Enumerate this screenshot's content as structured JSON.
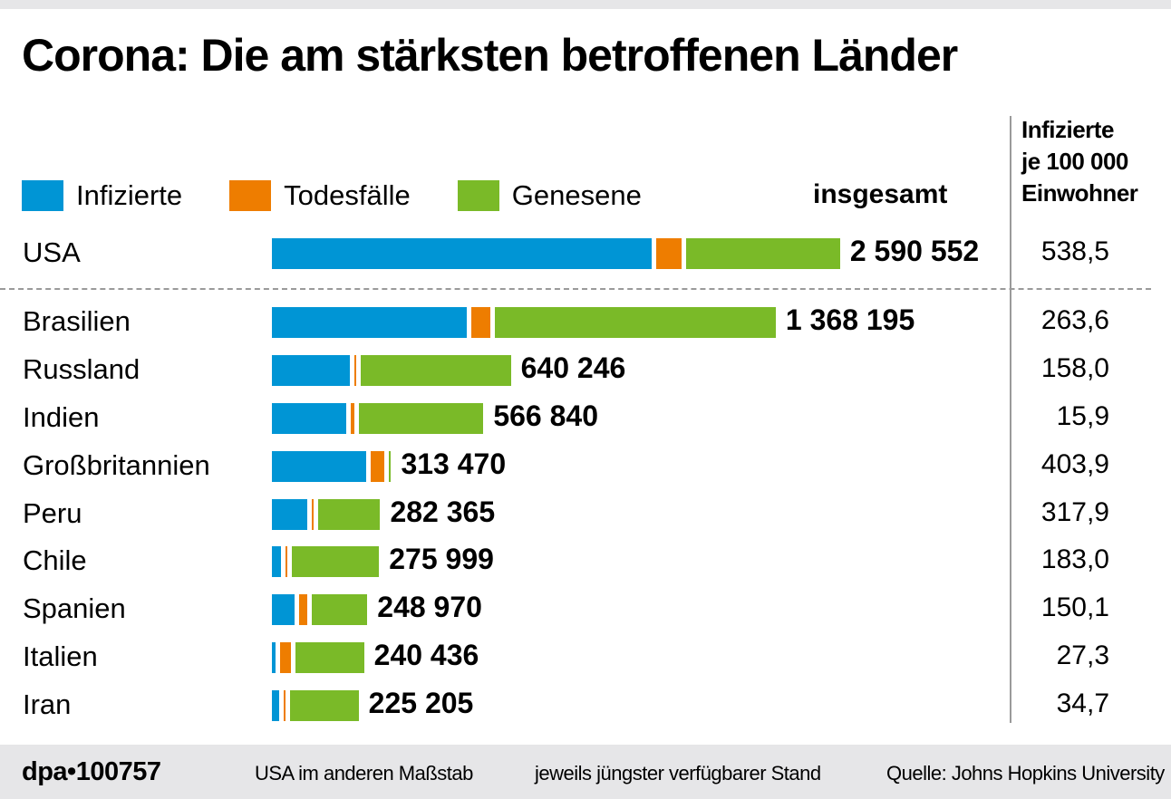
{
  "title": "Corona: Die am stärksten betroffenen Länder",
  "legend": [
    {
      "label": "Infizierte",
      "color": "#0095d5"
    },
    {
      "label": "Todesfälle",
      "color": "#ee7d00"
    },
    {
      "label": "Genesene",
      "color": "#7aba28"
    }
  ],
  "headers": {
    "total": "insgesamt",
    "rate": [
      "Infizierte",
      "je 100 000",
      "Einwohner"
    ]
  },
  "footer": {
    "logo": "dpa•100757",
    "note1": "USA im anderen Maßstab",
    "note2": "jeweils jüngster verfügbarer Stand",
    "source": "Quelle: Johns Hopkins University"
  },
  "chart_data": {
    "type": "bar",
    "orientation": "horizontal",
    "stacked": true,
    "title": "Corona: Die am stärksten betroffenen Länder",
    "series_names": [
      "Infizierte",
      "Todesfälle",
      "Genesene"
    ],
    "note": "Segment values estimated from bar lengths; totals are labeled. USA drawn at a different scale.",
    "rows": [
      {
        "country": "USA",
        "total": 2590552,
        "total_label": "2 590 552",
        "rate": "538,5",
        "infected": 1754000,
        "deaths": 127000,
        "recovered": 709000,
        "own_scale": true
      },
      {
        "country": "Brasilien",
        "total": 1368195,
        "total_label": "1 368 195",
        "rate": "263,6",
        "infected": 541000,
        "deaths": 58000,
        "recovered": 769000
      },
      {
        "country": "Russland",
        "total": 640246,
        "total_label": "640 246",
        "rate": "158,0",
        "infected": 220000,
        "deaths": 9000,
        "recovered": 411000
      },
      {
        "country": "Indien",
        "total": 566840,
        "total_label": "566 840",
        "rate": "15,9",
        "infected": 210000,
        "deaths": 17000,
        "recovered": 340000
      },
      {
        "country": "Großbritannien",
        "total": 313470,
        "total_label": "313 470",
        "rate": "403,9",
        "infected": 265000,
        "deaths": 44000,
        "recovered": 1400
      },
      {
        "country": "Peru",
        "total": 282365,
        "total_label": "282 365",
        "rate": "317,9",
        "infected": 102000,
        "deaths": 9500,
        "recovered": 171000
      },
      {
        "country": "Chile",
        "total": 275999,
        "total_label": "275 999",
        "rate": "183,0",
        "infected": 31000,
        "deaths": 5600,
        "recovered": 239000
      },
      {
        "country": "Spanien",
        "total": 248970,
        "total_label": "248 970",
        "rate": "150,1",
        "infected": 68000,
        "deaths": 28000,
        "recovered": 153000
      },
      {
        "country": "Italien",
        "total": 240436,
        "total_label": "240 436",
        "rate": "27,3",
        "infected": 17000,
        "deaths": 35000,
        "recovered": 188000
      },
      {
        "country": "Iran",
        "total": 225205,
        "total_label": "225 205",
        "rate": "34,7",
        "infected": 27000,
        "deaths": 11000,
        "recovered": 187000
      }
    ]
  }
}
